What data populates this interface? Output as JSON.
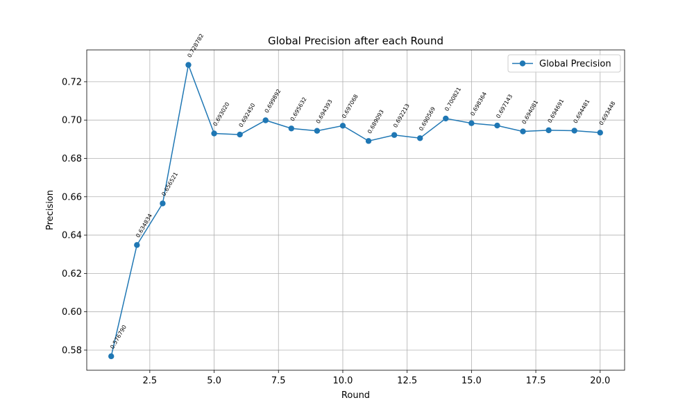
{
  "chart_data": {
    "type": "line",
    "title": "Global Precision after each Round",
    "xlabel": "Round",
    "ylabel": "Precision",
    "xlim": [
      0.05,
      20.95
    ],
    "ylim": [
      0.5695,
      0.7366
    ],
    "x_ticks": [
      2.5,
      5.0,
      7.5,
      10.0,
      12.5,
      15.0,
      17.5,
      20.0
    ],
    "x_tick_labels": [
      "2.5",
      "5.0",
      "7.5",
      "10.0",
      "12.5",
      "15.0",
      "17.5",
      "20.0"
    ],
    "y_ticks": [
      0.58,
      0.6,
      0.62,
      0.64,
      0.66,
      0.68,
      0.7,
      0.72
    ],
    "y_tick_labels": [
      "0.58",
      "0.60",
      "0.62",
      "0.64",
      "0.66",
      "0.68",
      "0.70",
      "0.72"
    ],
    "grid": true,
    "legend_position": "top-right",
    "colors": {
      "series": "#1f77b4",
      "grid": "#b0b0b0"
    },
    "series": [
      {
        "name": "Global Precision",
        "marker": "circle",
        "x": [
          1,
          2,
          3,
          4,
          5,
          6,
          7,
          8,
          9,
          10,
          11,
          12,
          13,
          14,
          15,
          16,
          17,
          18,
          19,
          20
        ],
        "values": [
          0.57679,
          0.634834,
          0.656521,
          0.728782,
          0.69302,
          0.69245,
          0.699892,
          0.695632,
          0.694393,
          0.697068,
          0.689093,
          0.692213,
          0.690569,
          0.700821,
          0.698364,
          0.697143,
          0.694081,
          0.694691,
          0.694481,
          0.693448
        ],
        "labels": [
          "0.576790",
          "0.634834",
          "0.656521",
          "0.728782",
          "0.693020",
          "0.692450",
          "0.699892",
          "0.695632",
          "0.694393",
          "0.697068",
          "0.689093",
          "0.692213",
          "0.690569",
          "0.700821",
          "0.698364",
          "0.697143",
          "0.694081",
          "0.694691",
          "0.694481",
          "0.693448"
        ]
      }
    ]
  }
}
